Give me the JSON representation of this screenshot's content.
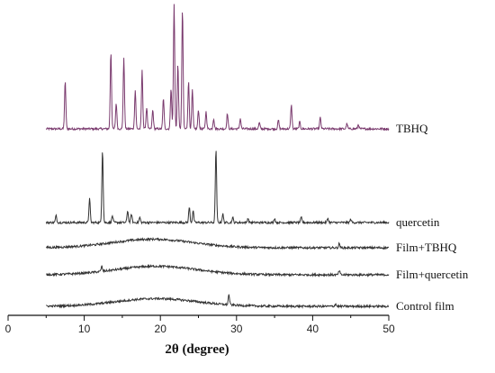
{
  "chart_data": {
    "type": "line",
    "title": "",
    "xlabel": "2θ (degree)",
    "ylabel": "",
    "xlim": [
      0,
      50
    ],
    "x_ticks": [
      "0",
      "10",
      "20",
      "30",
      "40",
      "50"
    ],
    "grid": false,
    "legend": "labels at right end of each trace",
    "series": [
      {
        "name": "TBHQ",
        "color": "#7a3a6e",
        "baseline": 0,
        "peaks": [
          [
            7.5,
            0.55
          ],
          [
            13.5,
            0.9
          ],
          [
            14.2,
            0.3
          ],
          [
            15.2,
            0.82
          ],
          [
            16.7,
            0.45
          ],
          [
            17.6,
            0.68
          ],
          [
            18.2,
            0.25
          ],
          [
            19.0,
            0.22
          ],
          [
            20.4,
            0.36
          ],
          [
            21.4,
            0.48
          ],
          [
            21.8,
            1.45
          ],
          [
            22.3,
            0.75
          ],
          [
            22.9,
            1.4
          ],
          [
            23.7,
            0.55
          ],
          [
            24.2,
            0.45
          ],
          [
            25.0,
            0.22
          ],
          [
            26.0,
            0.2
          ],
          [
            27.0,
            0.12
          ],
          [
            28.8,
            0.18
          ],
          [
            30.5,
            0.12
          ],
          [
            33.0,
            0.07
          ],
          [
            35.5,
            0.1
          ],
          [
            37.2,
            0.28
          ],
          [
            38.3,
            0.08
          ],
          [
            41.0,
            0.13
          ],
          [
            44.5,
            0.06
          ],
          [
            46.0,
            0.05
          ]
        ]
      },
      {
        "name": "quercetin",
        "color": "#333333",
        "baseline": 0,
        "peaks": [
          [
            6.3,
            0.08
          ],
          [
            10.7,
            0.28
          ],
          [
            12.4,
            0.85
          ],
          [
            13.7,
            0.08
          ],
          [
            15.7,
            0.14
          ],
          [
            16.2,
            0.1
          ],
          [
            17.3,
            0.06
          ],
          [
            23.8,
            0.18
          ],
          [
            24.3,
            0.14
          ],
          [
            27.3,
            0.85
          ],
          [
            28.2,
            0.1
          ],
          [
            29.5,
            0.06
          ],
          [
            31.5,
            0.05
          ],
          [
            35.0,
            0.05
          ],
          [
            38.5,
            0.06
          ],
          [
            42.0,
            0.05
          ],
          [
            45.0,
            0.04
          ]
        ]
      },
      {
        "name": "Film+TBHQ",
        "color": "#333333",
        "baseline": 0,
        "hump": [
          19.0,
          0.1
        ],
        "peaks": [
          [
            43.5,
            0.05
          ]
        ]
      },
      {
        "name": "Film+quercetin",
        "color": "#333333",
        "baseline": 0,
        "hump": [
          19.5,
          0.1
        ],
        "peaks": [
          [
            12.3,
            0.06
          ],
          [
            43.5,
            0.05
          ]
        ]
      },
      {
        "name": "Control film",
        "color": "#333333",
        "baseline": 0,
        "hump": [
          19.5,
          0.09
        ],
        "peaks": [
          [
            29.0,
            0.12
          ],
          [
            43.0,
            0.03
          ]
        ]
      }
    ]
  }
}
